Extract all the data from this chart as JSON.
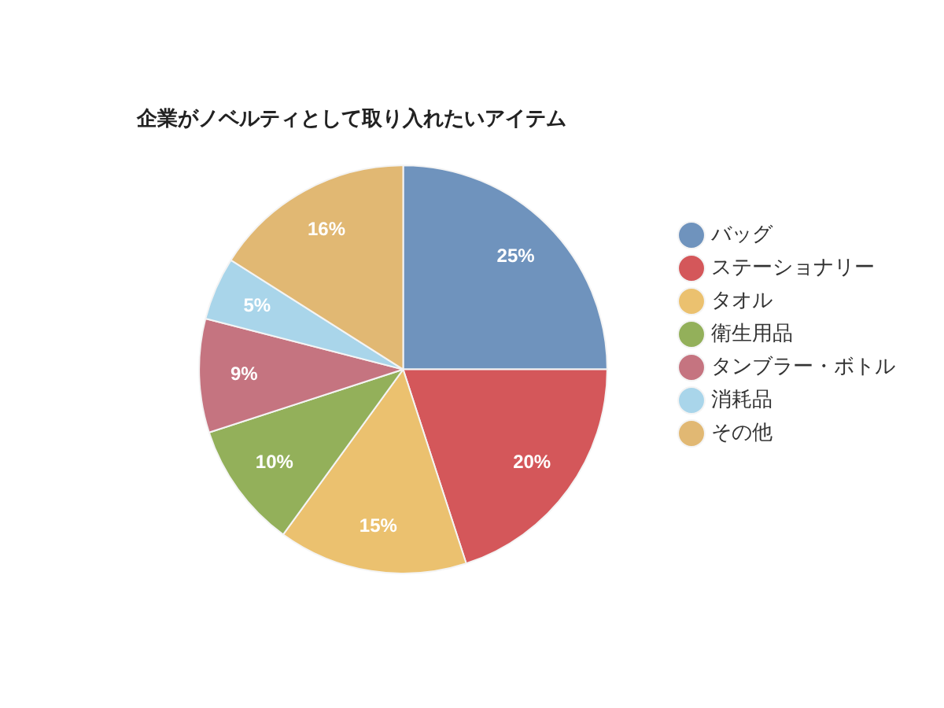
{
  "chart_data": {
    "type": "pie",
    "title": "企業がノベルティとして取り入れたいアイテム",
    "categories": [
      "バッグ",
      "ステーショナリー",
      "タオル",
      "衛生用品",
      "タンブラー・ボトル",
      "消耗品",
      "その他"
    ],
    "values": [
      25,
      20,
      15,
      10,
      9,
      5,
      16
    ],
    "colors": [
      "#6f93bd",
      "#d4575a",
      "#ebc16f",
      "#93b05a",
      "#c57480",
      "#a9d5ea",
      "#e1b873"
    ],
    "value_labels": [
      "25%",
      "20%",
      "15%",
      "10%",
      "9%",
      "5%",
      "16%"
    ],
    "legend": "right"
  }
}
